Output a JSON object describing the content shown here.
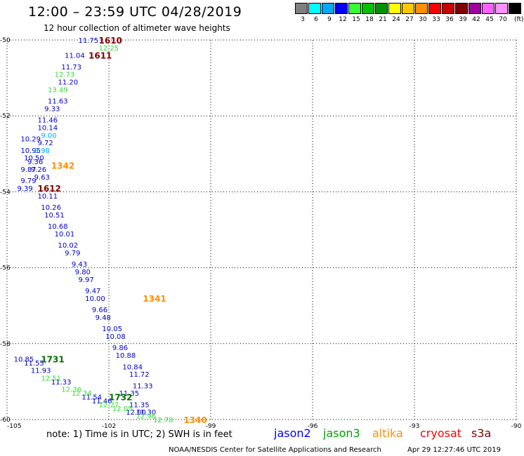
{
  "header": {
    "title": "12:00 – 23:59 UTC 04/28/2019",
    "subtitle": "12 hour collection of altimeter wave heights"
  },
  "legend": {
    "unit": "(ft)",
    "bins": [
      {
        "label": "3",
        "color": "#7f7f7f"
      },
      {
        "label": "6",
        "color": "#00ffff"
      },
      {
        "label": "9",
        "color": "#00a8ff"
      },
      {
        "label": "12",
        "color": "#0000ff"
      },
      {
        "label": "15",
        "color": "#33ff33"
      },
      {
        "label": "18",
        "color": "#00c000"
      },
      {
        "label": "21",
        "color": "#009000"
      },
      {
        "label": "24",
        "color": "#ffff00"
      },
      {
        "label": "27",
        "color": "#ffc800"
      },
      {
        "label": "30",
        "color": "#ff9000"
      },
      {
        "label": "33",
        "color": "#ff0000"
      },
      {
        "label": "36",
        "color": "#c80000"
      },
      {
        "label": "39",
        "color": "#800000"
      },
      {
        "label": "42",
        "color": "#a000a0"
      },
      {
        "label": "45",
        "color": "#ff60ff"
      },
      {
        "label": "70",
        "color": "#ff90ff"
      },
      {
        "label": "",
        "color": "#000000"
      }
    ]
  },
  "map": {
    "lon_range": [
      -105,
      -90
    ],
    "lat_range": [
      -60,
      -50
    ],
    "lon_ticks": [
      "-105",
      "-102",
      "-99",
      "-96",
      "-93",
      "-90"
    ],
    "lat_ticks": [
      "-50",
      "-52",
      "-54",
      "-56",
      "-58",
      "-60"
    ]
  },
  "observations": [
    {
      "text": "11.75",
      "color": "#0000c8",
      "lon": -102.9,
      "lat": -50.0
    },
    {
      "text": "12.25",
      "color": "#33dd33",
      "lon": -102.3,
      "lat": -50.2
    },
    {
      "text": "11.04",
      "color": "#0000c8",
      "lon": -103.3,
      "lat": -50.4
    },
    {
      "text": "11.73",
      "color": "#0000c8",
      "lon": -103.4,
      "lat": -50.7
    },
    {
      "text": "12.73",
      "color": "#33dd33",
      "lon": -103.6,
      "lat": -50.9
    },
    {
      "text": "11.20",
      "color": "#0000c8",
      "lon": -103.5,
      "lat": -51.1
    },
    {
      "text": "13.49",
      "color": "#33dd33",
      "lon": -103.8,
      "lat": -51.3
    },
    {
      "text": "11.63",
      "color": "#0000c8",
      "lon": -103.8,
      "lat": -51.6
    },
    {
      "text": "9.33",
      "color": "#0000c8",
      "lon": -103.9,
      "lat": -51.8
    },
    {
      "text": "11.46",
      "color": "#0000c8",
      "lon": -104.1,
      "lat": -52.1
    },
    {
      "text": "10.14",
      "color": "#0000c8",
      "lon": -104.1,
      "lat": -52.3
    },
    {
      "text": "9.00",
      "color": "#00a8ff",
      "lon": -104.0,
      "lat": -52.5
    },
    {
      "text": "10.29",
      "color": "#0000c8",
      "lon": -104.6,
      "lat": -52.6
    },
    {
      "text": "9.72",
      "color": "#0000c8",
      "lon": -104.1,
      "lat": -52.7
    },
    {
      "text": "10.95",
      "color": "#0000c8",
      "lon": -104.6,
      "lat": -52.9
    },
    {
      "text": "9.98",
      "color": "#00a8ff",
      "lon": -104.2,
      "lat": -52.9
    },
    {
      "text": "10.50",
      "color": "#0000c8",
      "lon": -104.5,
      "lat": -53.1
    },
    {
      "text": "9.36",
      "color": "#0000c8",
      "lon": -104.4,
      "lat": -53.2
    },
    {
      "text": "9.87",
      "color": "#0000c8",
      "lon": -104.6,
      "lat": -53.4
    },
    {
      "text": "9.26",
      "color": "#0000c8",
      "lon": -104.3,
      "lat": -53.4
    },
    {
      "text": "9.79",
      "color": "#0000c8",
      "lon": -104.6,
      "lat": -53.7
    },
    {
      "text": "9.63",
      "color": "#0000c8",
      "lon": -104.2,
      "lat": -53.6
    },
    {
      "text": "9.39",
      "color": "#0000c8",
      "lon": -104.7,
      "lat": -53.9
    },
    {
      "text": "10.11",
      "color": "#0000c8",
      "lon": -104.1,
      "lat": -54.1
    },
    {
      "text": "10.26",
      "color": "#0000c8",
      "lon": -104.0,
      "lat": -54.4
    },
    {
      "text": "10.51",
      "color": "#0000c8",
      "lon": -103.9,
      "lat": -54.6
    },
    {
      "text": "10.68",
      "color": "#0000c8",
      "lon": -103.8,
      "lat": -54.9
    },
    {
      "text": "10.01",
      "color": "#0000c8",
      "lon": -103.6,
      "lat": -55.1
    },
    {
      "text": "10.02",
      "color": "#0000c8",
      "lon": -103.5,
      "lat": -55.4
    },
    {
      "text": "9.79",
      "color": "#0000c8",
      "lon": -103.3,
      "lat": -55.6
    },
    {
      "text": "9.43",
      "color": "#0000c8",
      "lon": -103.1,
      "lat": -55.9
    },
    {
      "text": "9.80",
      "color": "#0000c8",
      "lon": -103.0,
      "lat": -56.1
    },
    {
      "text": "9.97",
      "color": "#0000c8",
      "lon": -102.9,
      "lat": -56.3
    },
    {
      "text": "9.47",
      "color": "#0000c8",
      "lon": -102.7,
      "lat": -56.6
    },
    {
      "text": "10.00",
      "color": "#0000c8",
      "lon": -102.7,
      "lat": -56.8
    },
    {
      "text": "9.66",
      "color": "#0000c8",
      "lon": -102.5,
      "lat": -57.1
    },
    {
      "text": "9.48",
      "color": "#0000c8",
      "lon": -102.4,
      "lat": -57.3
    },
    {
      "text": "10.05",
      "color": "#0000c8",
      "lon": -102.2,
      "lat": -57.6
    },
    {
      "text": "10.08",
      "color": "#0000c8",
      "lon": -102.1,
      "lat": -57.8
    },
    {
      "text": "9.86",
      "color": "#0000c8",
      "lon": -101.9,
      "lat": -58.1
    },
    {
      "text": "10.88",
      "color": "#0000c8",
      "lon": -101.8,
      "lat": -58.3
    },
    {
      "text": "10.84",
      "color": "#0000c8",
      "lon": -101.6,
      "lat": -58.6
    },
    {
      "text": "11.72",
      "color": "#0000c8",
      "lon": -101.4,
      "lat": -58.8
    },
    {
      "text": "11.33",
      "color": "#0000c8",
      "lon": -101.3,
      "lat": -59.1
    },
    {
      "text": "11.35",
      "color": "#0000c8",
      "lon": -101.7,
      "lat": -59.3
    },
    {
      "text": "11.35",
      "color": "#0000c8",
      "lon": -101.4,
      "lat": -59.6
    },
    {
      "text": "11.30",
      "color": "#0000c8",
      "lon": -101.2,
      "lat": -59.8
    },
    {
      "text": "12.00",
      "color": "#0000c8",
      "lon": -101.5,
      "lat": -59.8
    },
    {
      "text": "10.85",
      "color": "#0000c8",
      "lon": -104.8,
      "lat": -58.4
    },
    {
      "text": "11.55",
      "color": "#0000c8",
      "lon": -104.5,
      "lat": -58.5
    },
    {
      "text": "11.93",
      "color": "#0000c8",
      "lon": -104.3,
      "lat": -58.7
    },
    {
      "text": "12.51",
      "color": "#33dd33",
      "lon": -104.0,
      "lat": -58.9
    },
    {
      "text": "11.33",
      "color": "#0000c8",
      "lon": -103.7,
      "lat": -59.0
    },
    {
      "text": "12.36",
      "color": "#33dd33",
      "lon": -103.4,
      "lat": -59.2
    },
    {
      "text": "12.34",
      "color": "#33dd33",
      "lon": -103.1,
      "lat": -59.3
    },
    {
      "text": "11.54",
      "color": "#0000c8",
      "lon": -102.8,
      "lat": -59.4
    },
    {
      "text": "11.46",
      "color": "#0000c8",
      "lon": -102.5,
      "lat": -59.5
    },
    {
      "text": "12.27",
      "color": "#33dd33",
      "lon": -102.3,
      "lat": -59.6
    },
    {
      "text": "12.05",
      "color": "#33dd33",
      "lon": -101.9,
      "lat": -59.7
    },
    {
      "text": "12.96",
      "color": "#33dd33",
      "lon": -101.2,
      "lat": -59.9
    },
    {
      "text": "12.78",
      "color": "#33dd33",
      "lon": -100.7,
      "lat": -60.0
    }
  ],
  "pass_times": [
    {
      "text": "1610",
      "color": "#800000",
      "lon": -102.3,
      "lat": -50.0
    },
    {
      "text": "1611",
      "color": "#800000",
      "lon": -102.6,
      "lat": -50.4
    },
    {
      "text": "1342",
      "color": "#ff9000",
      "lon": -103.7,
      "lat": -53.3
    },
    {
      "text": "1612",
      "color": "#800000",
      "lon": -104.1,
      "lat": -53.9
    },
    {
      "text": "1341",
      "color": "#ff9000",
      "lon": -101.0,
      "lat": -56.8
    },
    {
      "text": "1731",
      "color": "#007000",
      "lon": -104.0,
      "lat": -58.4
    },
    {
      "text": "1732",
      "color": "#007000",
      "lon": -102.0,
      "lat": -59.4
    },
    {
      "text": "1340",
      "color": "#ff9000",
      "lon": -99.8,
      "lat": -60.0
    }
  ],
  "footer": {
    "note": "note:  1) Time is in UTC;  2) SWH is in feet",
    "satellites": [
      {
        "name": "jason2",
        "color": "#0000ff"
      },
      {
        "name": "jason3",
        "color": "#00a000"
      },
      {
        "name": "altika",
        "color": "#ff9000"
      },
      {
        "name": "cryosat",
        "color": "#ff0000"
      },
      {
        "name": "s3a",
        "color": "#800000"
      }
    ],
    "credit": "NOAA/NESDIS Center for Satellite Applications and Research",
    "timestamp": "Apr 29 12:27:46 UTC 2019"
  }
}
